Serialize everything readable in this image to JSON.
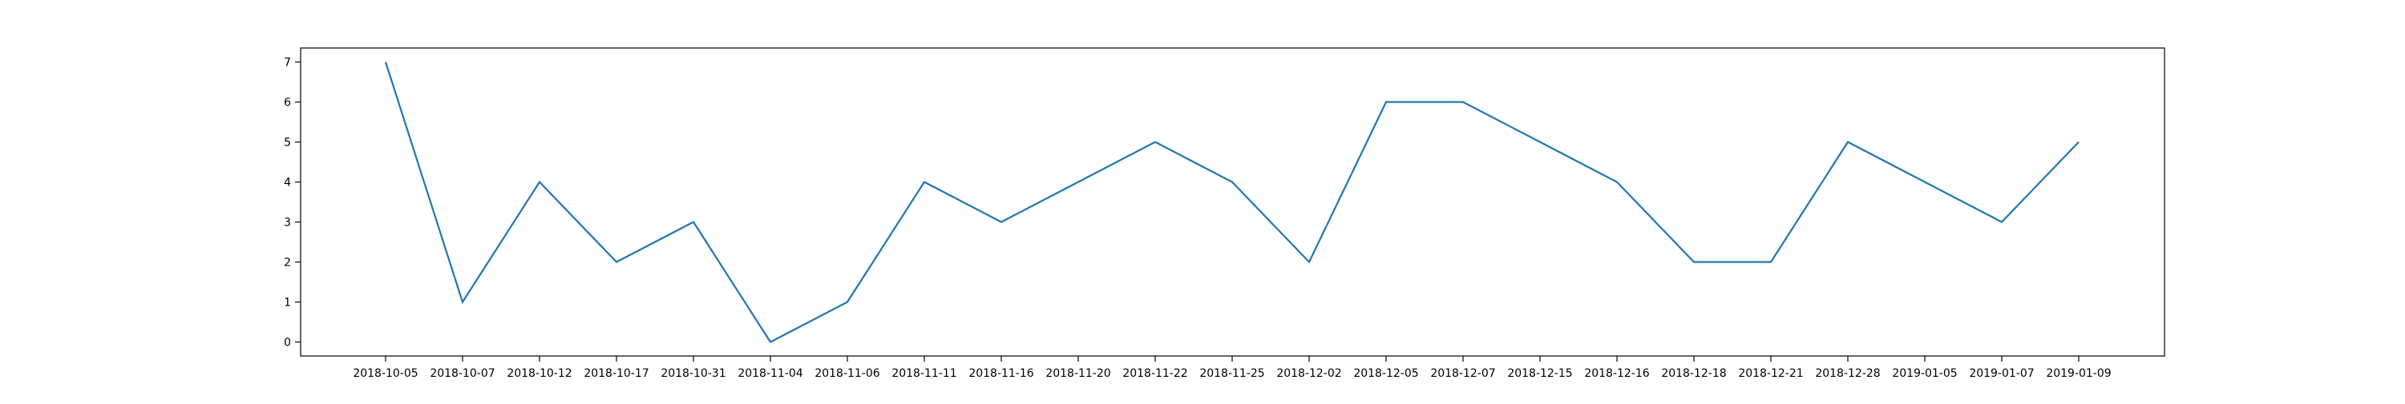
{
  "chart_data": {
    "type": "line",
    "title": "",
    "xlabel": "",
    "ylabel": "",
    "ylim": [
      -0.35,
      7.35
    ],
    "yticks": [
      0,
      1,
      2,
      3,
      4,
      5,
      6,
      7
    ],
    "grid": false,
    "legend": "none",
    "x": [
      "2018-10-05",
      "2018-10-07",
      "2018-10-12",
      "2018-10-17",
      "2018-10-31",
      "2018-11-04",
      "2018-11-06",
      "2018-11-11",
      "2018-11-16",
      "2018-11-20",
      "2018-11-22",
      "2018-11-25",
      "2018-12-02",
      "2018-12-05",
      "2018-12-07",
      "2018-12-15",
      "2018-12-16",
      "2018-12-18",
      "2018-12-21",
      "2018-12-28",
      "2019-01-05",
      "2019-01-07",
      "2019-01-09"
    ],
    "series": [
      {
        "color": "#1f77b4",
        "values": [
          7,
          1,
          4,
          2,
          3,
          0,
          1,
          4,
          3,
          4,
          5,
          4,
          2,
          6,
          6,
          5,
          4,
          2,
          2,
          5,
          4,
          3,
          5
        ]
      }
    ]
  }
}
